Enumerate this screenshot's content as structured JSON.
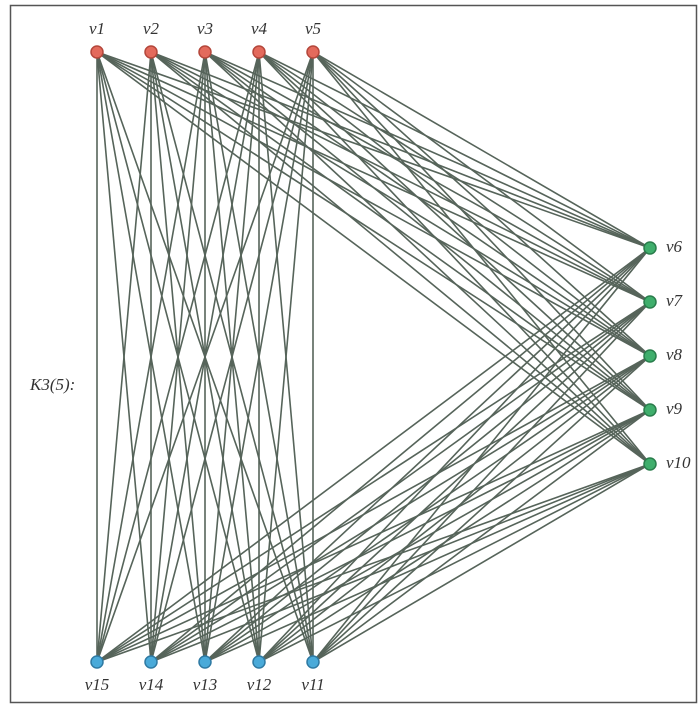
{
  "graph_label": "K3(5):",
  "parts": [
    [
      "v1",
      "v2",
      "v3",
      "v4",
      "v5"
    ],
    [
      "v6",
      "v7",
      "v8",
      "v9",
      "v10"
    ],
    [
      "v11",
      "v12",
      "v13",
      "v14",
      "v15"
    ]
  ]
}
